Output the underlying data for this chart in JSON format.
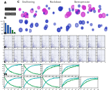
{
  "background": "#ffffff",
  "wb_band_color": "#222222",
  "bar_colors": [
    "#3366bb",
    "#3366bb",
    "#3366bb",
    "#228833",
    "#228833"
  ],
  "bar_values": [
    8,
    6.5,
    5,
    2.5,
    1.0
  ],
  "scatter_dot_color": "#9999cc",
  "scatter_bg": "#eef0f8",
  "line_color1": "#009944",
  "line_color2": "#00aaaa",
  "icc_bg": "#050008",
  "icc_magenta": "#cc33cc",
  "icc_blue": "#2233bb",
  "section_labels": [
    "C",
    "D",
    "E",
    "F",
    "G",
    "H",
    "I",
    "J",
    "K",
    "L",
    "M",
    "N"
  ],
  "num_scatter_cols_d": 11,
  "num_scatter_cols_e": 11,
  "num_line_cols_l": 4,
  "num_line_cols_m": 5
}
